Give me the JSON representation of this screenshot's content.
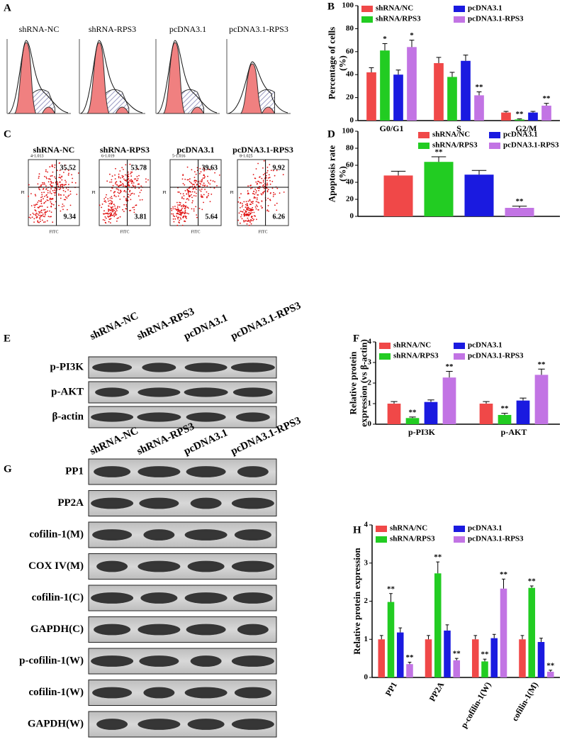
{
  "panel_labels": [
    "A",
    "B",
    "C",
    "D",
    "E",
    "F",
    "G",
    "H"
  ],
  "cell_cycle_histograms": {
    "titles": [
      "shRNA-NC",
      "shRNA-RPS3",
      "pcDNA3.1",
      "pcDNA3.1-RPS3"
    ]
  },
  "apoptosis_dot_plots": {
    "titles": [
      "shRNA-NC",
      "shRNA-RPS3",
      "pcDNA3.1",
      "pcDNA3.1-RPS3"
    ],
    "gate_labels": [
      "4-1.013",
      "6-1.019",
      "5-1.016",
      "8-1.025"
    ],
    "upper_right": [
      35.52,
      53.78,
      39.63,
      9.92
    ],
    "lower_right": [
      9.34,
      3.81,
      5.64,
      6.26
    ],
    "x_label": "FITC",
    "y_label": "PI"
  },
  "blot_e": {
    "lanes": [
      "shRNA-NC",
      "shRNA-RPS3",
      "pcDNA3.1",
      "pcDNA3.1-RPS3"
    ],
    "rows": [
      "p-PI3K",
      "p-AKT",
      "β-actin"
    ]
  },
  "blot_g": {
    "lanes": [
      "shRNA-NC",
      "shRNA-RPS3",
      "pcDNA3.1",
      "pcDNA3.1-RPS3"
    ],
    "rows": [
      "PP1",
      "PP2A",
      "cofilin-1(M)",
      "COX IV(M)",
      "cofilin-1(C)",
      "GAPDH(C)",
      "p-cofilin-1(W)",
      "cofilin-1(W)",
      "GAPDH(W)"
    ]
  },
  "chart_data": [
    {
      "type": "bar",
      "ylabel": [
        "Percentage of cells",
        "(%)"
      ],
      "categories": [
        "G0/G1",
        "S",
        "G2/M"
      ],
      "ylim": [
        0,
        100
      ],
      "yticks": [
        0,
        20,
        40,
        60,
        80,
        100
      ],
      "series": [
        {
          "name": "shRNA/NC",
          "color": "#f04848",
          "values": [
            42,
            50,
            7
          ],
          "errors": [
            4,
            5,
            1
          ],
          "marks": [
            null,
            null,
            null
          ]
        },
        {
          "name": "shRNA/RPS3",
          "color": "#22cc22",
          "values": [
            61,
            38,
            1
          ],
          "errors": [
            6,
            4,
            0.5
          ],
          "marks": [
            "*",
            null,
            "**"
          ]
        },
        {
          "name": "pcDNA3.1",
          "color": "#1a1ae0",
          "values": [
            40,
            52,
            7
          ],
          "errors": [
            4,
            5,
            1
          ],
          "marks": [
            null,
            null,
            null
          ]
        },
        {
          "name": "pcDNA3.1-RPS3",
          "color": "#c274e4",
          "values": [
            64,
            22,
            13
          ],
          "errors": [
            6,
            3,
            2
          ],
          "marks": [
            "*",
            "**",
            "**"
          ]
        }
      ]
    },
    {
      "type": "bar",
      "ylabel": [
        "Apoptosis rate",
        "(%)"
      ],
      "categories": [
        null
      ],
      "ylim": [
        0,
        100
      ],
      "yticks": [
        0,
        20,
        40,
        60,
        80,
        100
      ],
      "series": [
        {
          "name": "shRNA/NC",
          "color": "#f04848",
          "values": [
            48
          ],
          "errors": [
            5
          ],
          "marks": [
            null
          ]
        },
        {
          "name": "shRNA/RPS3",
          "color": "#22cc22",
          "values": [
            64
          ],
          "errors": [
            6
          ],
          "marks": [
            "**"
          ]
        },
        {
          "name": "pcDNA3.1",
          "color": "#1a1ae0",
          "values": [
            49
          ],
          "errors": [
            5
          ],
          "marks": [
            null
          ]
        },
        {
          "name": "pcDNA3.1-RPS3",
          "color": "#c274e4",
          "values": [
            10
          ],
          "errors": [
            2
          ],
          "marks": [
            "**"
          ]
        }
      ]
    },
    {
      "type": "bar",
      "ylabel": [
        "Relative protein",
        "expression (vs β-actin)"
      ],
      "categories": [
        "p-PI3K",
        "p-AKT"
      ],
      "ylim": [
        0,
        4
      ],
      "yticks": [
        0,
        1,
        2,
        3,
        4
      ],
      "series": [
        {
          "name": "shRNA/NC",
          "color": "#f04848",
          "values": [
            1.0,
            1.0
          ],
          "errors": [
            0.1,
            0.1
          ],
          "marks": [
            null,
            null
          ]
        },
        {
          "name": "shRNA/RPS3",
          "color": "#22cc22",
          "values": [
            0.3,
            0.45
          ],
          "errors": [
            0.05,
            0.08
          ],
          "marks": [
            "**",
            "**"
          ]
        },
        {
          "name": "pcDNA3.1",
          "color": "#1a1ae0",
          "values": [
            1.08,
            1.15
          ],
          "errors": [
            0.1,
            0.12
          ],
          "marks": [
            null,
            null
          ]
        },
        {
          "name": "pcDNA3.1-RPS3",
          "color": "#c274e4",
          "values": [
            2.27,
            2.4
          ],
          "errors": [
            0.3,
            0.28
          ],
          "marks": [
            "**",
            "**"
          ]
        }
      ]
    },
    {
      "type": "bar",
      "ylabel": [
        "Relative protein expression"
      ],
      "categories": [
        "PP1",
        "PP2A",
        "p-cofilin-1(W)",
        "cofilin-1(M)"
      ],
      "ylim": [
        0,
        4
      ],
      "yticks": [
        0,
        1,
        2,
        3,
        4
      ],
      "series": [
        {
          "name": "shRNA/NC",
          "color": "#f04848",
          "values": [
            1.0,
            1.0,
            1.0,
            1.0
          ],
          "errors": [
            0.1,
            0.1,
            0.1,
            0.1
          ],
          "marks": [
            null,
            null,
            null,
            null
          ]
        },
        {
          "name": "shRNA/RPS3",
          "color": "#22cc22",
          "values": [
            1.98,
            2.73,
            0.42,
            2.35
          ],
          "errors": [
            0.22,
            0.3,
            0.06,
            0.05
          ],
          "marks": [
            "**",
            "**",
            "**",
            "**"
          ]
        },
        {
          "name": "pcDNA3.1",
          "color": "#1a1ae0",
          "values": [
            1.18,
            1.23,
            1.03,
            0.93
          ],
          "errors": [
            0.12,
            0.15,
            0.1,
            0.1
          ],
          "marks": [
            null,
            null,
            null,
            null
          ]
        },
        {
          "name": "pcDNA3.1-RPS3",
          "color": "#c274e4",
          "values": [
            0.35,
            0.45,
            2.33,
            0.15
          ],
          "errors": [
            0.05,
            0.05,
            0.25,
            0.04
          ],
          "marks": [
            "**",
            "**",
            "**",
            "**"
          ]
        }
      ]
    }
  ]
}
